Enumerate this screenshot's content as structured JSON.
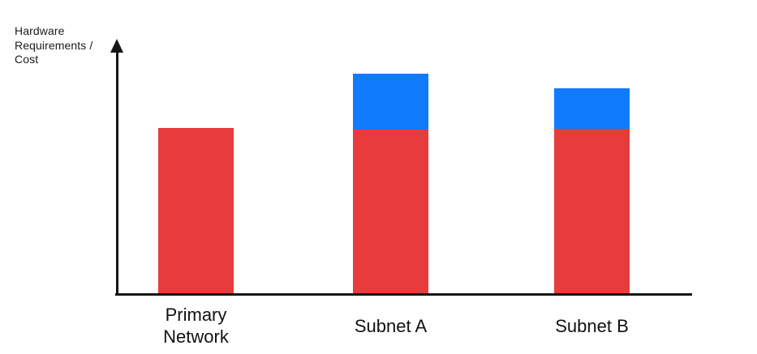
{
  "chart_data": {
    "type": "bar",
    "stacked": true,
    "title": "",
    "xlabel": "",
    "ylabel": "Hardware Requirements / Cost",
    "categories": [
      "Primary Network",
      "Subnet A",
      "Subnet B"
    ],
    "series": [
      {
        "name": "red",
        "color": "#E73B3C",
        "values": [
          67,
          66.5,
          66.5
        ]
      },
      {
        "name": "blue",
        "color": "#107BFD",
        "values": [
          0,
          22.5,
          16.5
        ]
      }
    ],
    "ylim": [
      0,
      100
    ],
    "grid": false,
    "legend": "none",
    "y_axis_arrow": true,
    "axis_color": "#161616"
  }
}
